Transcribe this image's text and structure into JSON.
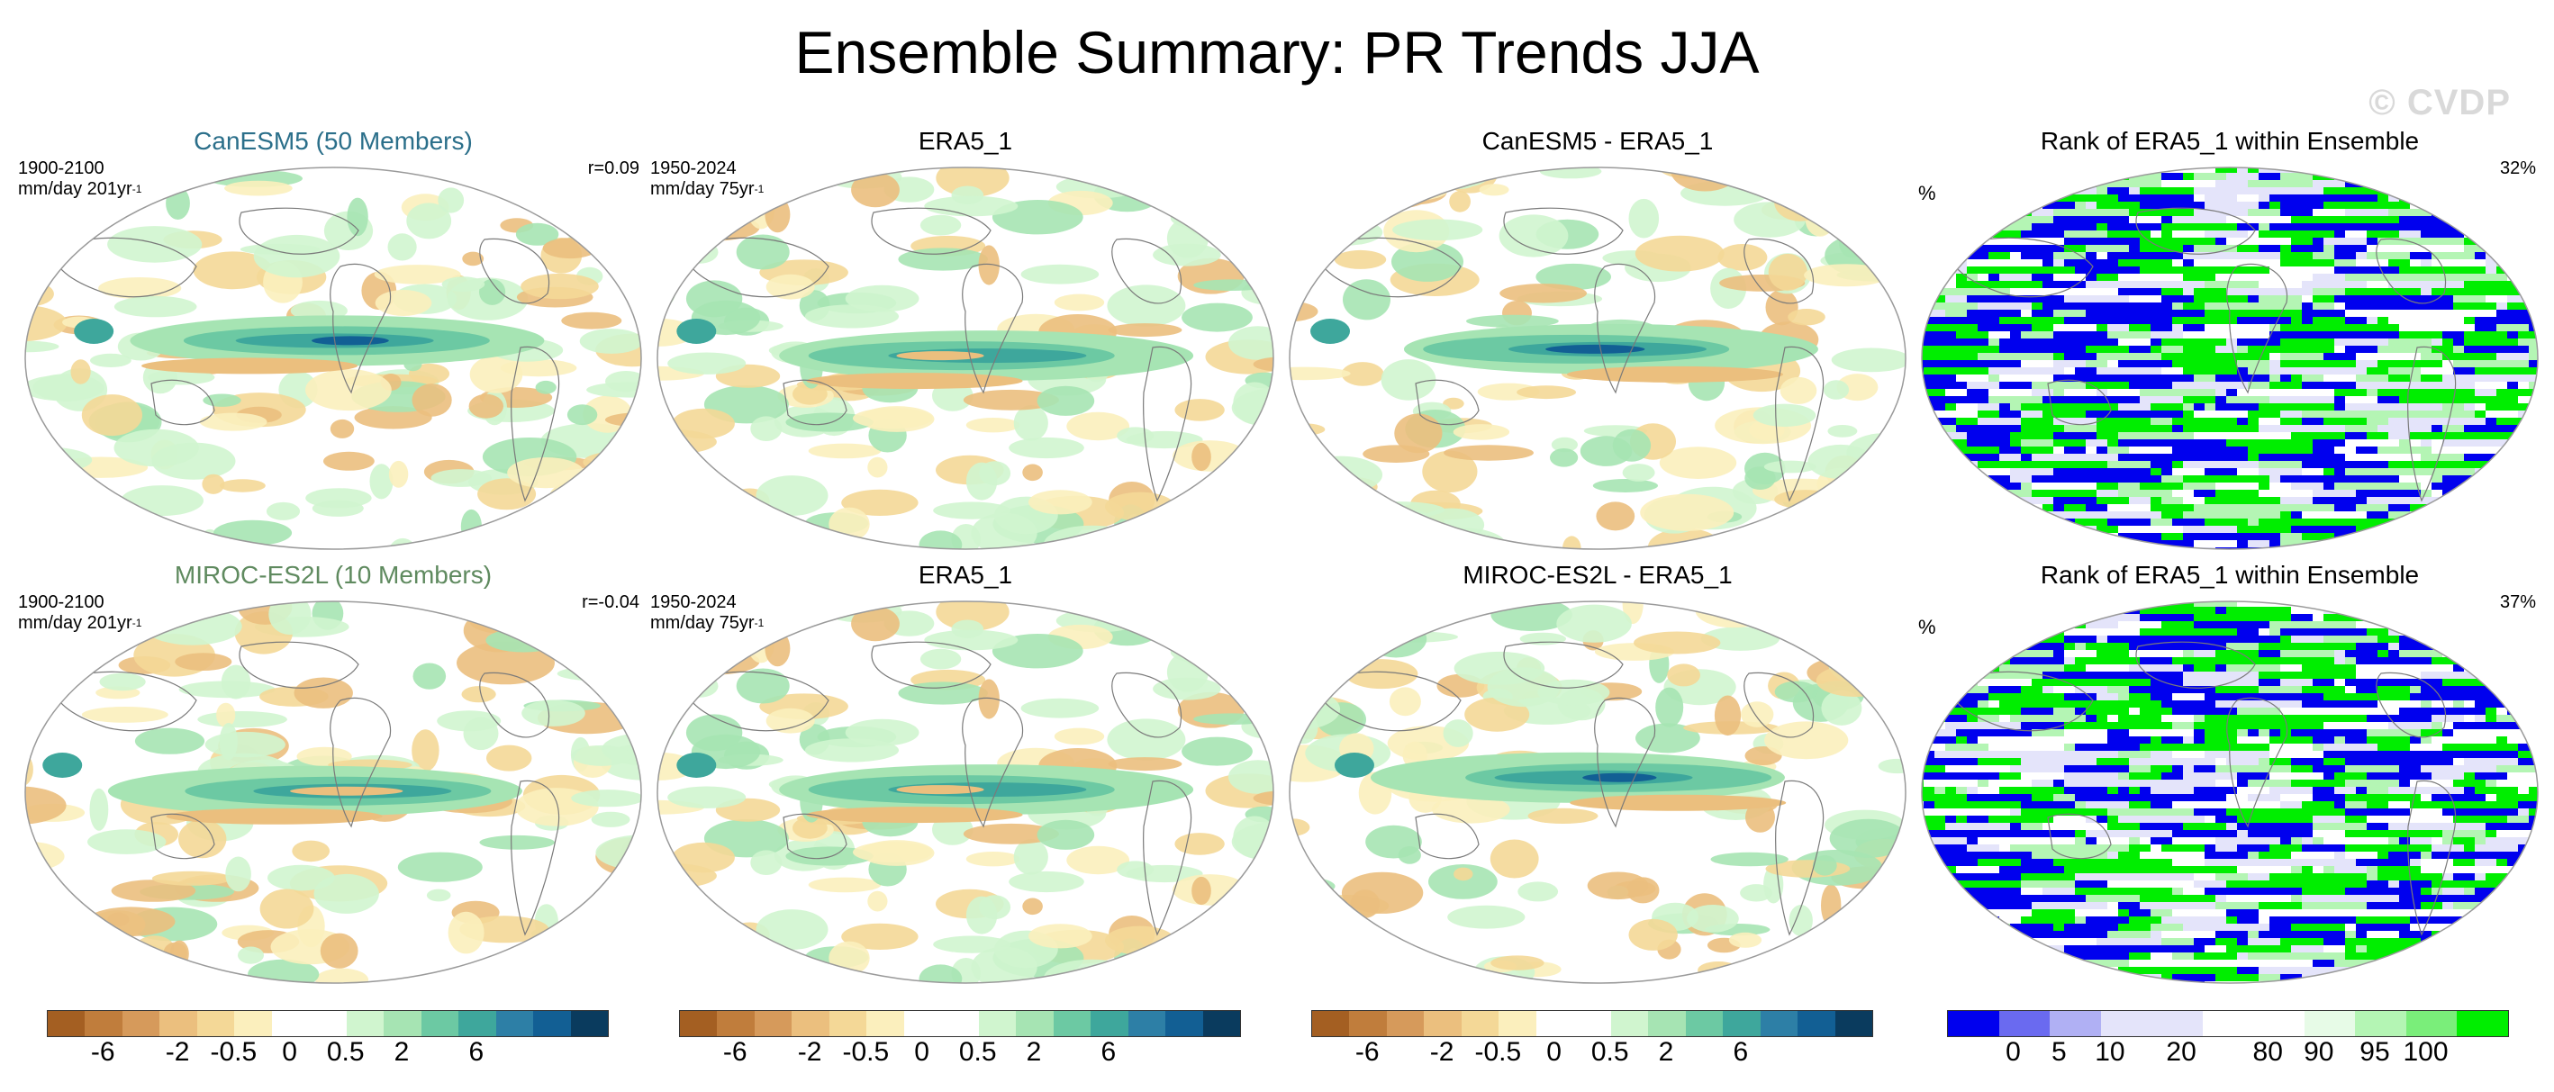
{
  "page_title": "Ensemble Summary: PR Trends JJA",
  "watermark": "© CVDP",
  "rows": [
    {
      "model": {
        "title": "CanESM5 (50 Members)",
        "title_color": "#2b6f8a",
        "period": "1900-2100",
        "units": "mm/day 201yr",
        "units_sup": "-1",
        "corr": "r=0.09"
      },
      "obs": {
        "title": "ERA5_1",
        "period": "1950-2024",
        "units": "mm/day 75yr",
        "units_sup": "-1"
      },
      "diff": {
        "title": "CanESM5 - ERA5_1"
      },
      "rank": {
        "title": "Rank of ERA5_1 within Ensemble",
        "unit_label": "%",
        "pct": "32%"
      }
    },
    {
      "model": {
        "title": "MIROC-ES2L (10 Members)",
        "title_color": "#5f8a5f",
        "period": "1900-2100",
        "units": "mm/day 201yr",
        "units_sup": "-1",
        "corr": "r=-0.04"
      },
      "obs": {
        "title": "ERA5_1",
        "period": "1950-2024",
        "units": "mm/day 75yr",
        "units_sup": "-1"
      },
      "diff": {
        "title": "MIROC-ES2L - ERA5_1"
      },
      "rank": {
        "title": "Rank of ERA5_1 within Ensemble",
        "unit_label": "%",
        "pct": "37%"
      }
    }
  ],
  "colorbars": {
    "trend": {
      "colors": [
        "#a45f22",
        "#c07d3c",
        "#d69a5b",
        "#ebbf7e",
        "#f4d897",
        "#fbefbd",
        "#ffffff",
        "#ffffff",
        "#d0f5cf",
        "#a6e4b3",
        "#6cc9a3",
        "#3ea79c",
        "#2d7fa6",
        "#125f94",
        "#0a3b5e"
      ],
      "labels": [
        "-6",
        "-2",
        "-0.5",
        "0",
        "0.5",
        "2",
        "6"
      ]
    },
    "rank": {
      "colors": [
        "#0000ee",
        "#6a6af0",
        "#b0b0f4",
        "#e4e4fa",
        "#e4e4fa",
        "#ffffff",
        "#ffffff",
        "#e7fbe7",
        "#b4f5b4",
        "#7aee7a",
        "#00ee00"
      ],
      "labels": [
        "0",
        "5",
        "10",
        "20",
        "80",
        "90",
        "95",
        "100"
      ]
    }
  },
  "map_colors": {
    "land_outline": "#7a7a7a",
    "frame": "#9a9a9a",
    "rank_blue": "#0000ee",
    "rank_green": "#00ee00"
  }
}
